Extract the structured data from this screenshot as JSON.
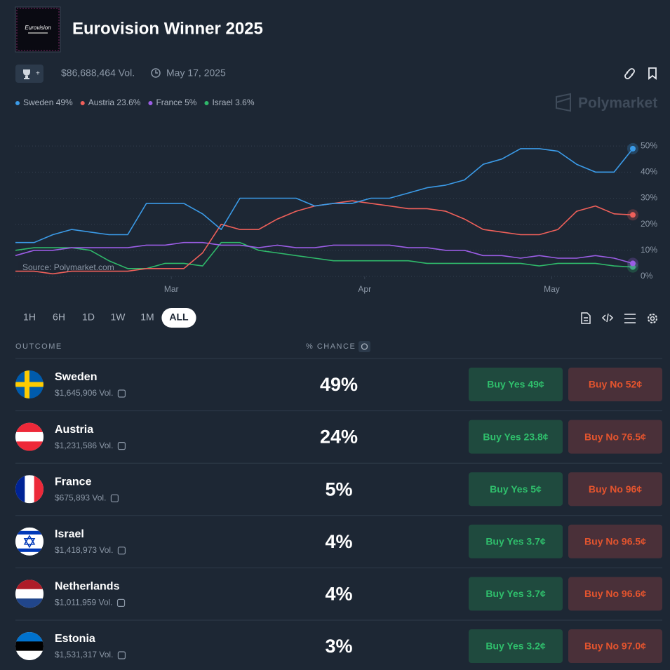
{
  "header": {
    "title": "Eurovision Winner 2025",
    "volume": "$86,688,464 Vol.",
    "date": "May 17, 2025",
    "brand": "Polymarket"
  },
  "chart_data": {
    "type": "line",
    "source": "Source: Polymarket.com",
    "x": [
      0,
      3,
      6,
      9,
      12,
      15,
      18,
      21,
      24,
      27,
      30,
      33,
      36,
      39,
      42,
      45,
      48,
      51,
      54,
      57,
      60,
      63,
      66,
      69,
      72,
      75,
      78,
      81,
      84,
      87,
      90,
      93,
      96,
      99
    ],
    "xlim": [
      0,
      99
    ],
    "xticks": [
      {
        "value": 25,
        "label": "Mar"
      },
      {
        "value": 56,
        "label": "Apr"
      },
      {
        "value": 86,
        "label": "May"
      }
    ],
    "ylim": [
      0,
      53
    ],
    "yticks": [
      {
        "value": 0,
        "label": "0%"
      },
      {
        "value": 10,
        "label": "10%"
      },
      {
        "value": 20,
        "label": "20%"
      },
      {
        "value": 30,
        "label": "30%"
      },
      {
        "value": 40,
        "label": "40%"
      },
      {
        "value": 50,
        "label": "50%"
      }
    ],
    "grid": true,
    "series": [
      {
        "name": "Sweden 49%",
        "color": "#3b9be8",
        "values": [
          13,
          13,
          16,
          18,
          17,
          16,
          16,
          28,
          28,
          28,
          24,
          18,
          30,
          30,
          30,
          30,
          27,
          28,
          28,
          30,
          30,
          32,
          34,
          35,
          37,
          43,
          45,
          49,
          49,
          48,
          43,
          40,
          40,
          49
        ]
      },
      {
        "name": "Austria 23.6%",
        "color": "#f0605a",
        "values": [
          2,
          2,
          1,
          2,
          2,
          2,
          2,
          3,
          3,
          3,
          9,
          20,
          18,
          18,
          22,
          25,
          27,
          28,
          29,
          28,
          27,
          26,
          26,
          25,
          22,
          18,
          17,
          16,
          16,
          18,
          25,
          27,
          24,
          23.6
        ]
      },
      {
        "name": "France 5%",
        "color": "#9b5de5",
        "values": [
          8,
          10,
          10,
          11,
          11,
          11,
          11,
          12,
          12,
          13,
          13,
          12,
          12,
          11,
          12,
          11,
          11,
          12,
          12,
          12,
          12,
          11,
          11,
          10,
          10,
          8,
          8,
          7,
          8,
          7,
          7,
          8,
          7,
          5
        ]
      },
      {
        "name": "Israel 3.6%",
        "color": "#2fb86a",
        "values": [
          10,
          11,
          11,
          11,
          10,
          6,
          3,
          3,
          5,
          5,
          4,
          13,
          13,
          10,
          9,
          8,
          7,
          6,
          6,
          6,
          6,
          6,
          5,
          5,
          5,
          5,
          5,
          5,
          4,
          5,
          5,
          5,
          4,
          3.6
        ]
      }
    ]
  },
  "ranges": [
    "1H",
    "6H",
    "1D",
    "1W",
    "1M",
    "ALL"
  ],
  "table": {
    "headers": [
      "OUTCOME",
      "% CHANCE"
    ],
    "rows": [
      {
        "name": "Sweden",
        "volume": "$1,645,906 Vol.",
        "chance": "49%",
        "buy_yes": "Buy Yes 49¢",
        "buy_no": "Buy No 52¢"
      },
      {
        "name": "Austria",
        "volume": "$1,231,586 Vol.",
        "chance": "24%",
        "buy_yes": "Buy Yes 23.8¢",
        "buy_no": "Buy No 76.5¢"
      },
      {
        "name": "France",
        "volume": "$675,893 Vol.",
        "chance": "5%",
        "buy_yes": "Buy Yes 5¢",
        "buy_no": "Buy No 96¢"
      },
      {
        "name": "Israel",
        "volume": "$1,418,973 Vol.",
        "chance": "4%",
        "buy_yes": "Buy Yes 3.7¢",
        "buy_no": "Buy No 96.5¢"
      },
      {
        "name": "Netherlands",
        "volume": "$1,011,959 Vol.",
        "chance": "4%",
        "buy_yes": "Buy Yes 3.7¢",
        "buy_no": "Buy No 96.6¢"
      },
      {
        "name": "Estonia",
        "volume": "$1,531,317 Vol.",
        "chance": "3%",
        "buy_yes": "Buy Yes 3.2¢",
        "buy_no": "Buy No 97.0¢"
      }
    ]
  }
}
